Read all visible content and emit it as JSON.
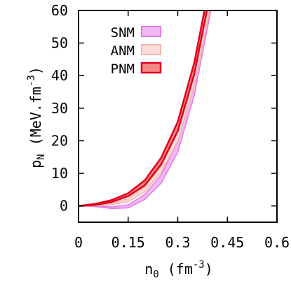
{
  "chart_data": {
    "type": "area",
    "xlabel": "n",
    "xlabel_sub": "0",
    "xlabel_unit": "(fm",
    "xlabel_exp": "-3",
    "xlabel_close": ")",
    "ylabel": "p",
    "ylabel_sub": "N",
    "ylabel_unit": "(MeV.fm",
    "ylabel_exp": "-3",
    "ylabel_close": ")",
    "xlim": [
      0,
      0.6
    ],
    "ylim": [
      -5,
      60
    ],
    "x_ticks": [
      0,
      0.15,
      0.3,
      0.45,
      0.6
    ],
    "x_tick_labels": [
      "0",
      "0.15",
      "0.3",
      "0.45",
      "0.6"
    ],
    "y_ticks": [
      0,
      10,
      20,
      30,
      40,
      50,
      60
    ],
    "y_tick_labels": [
      "0",
      "10",
      "20",
      "30",
      "40",
      "50",
      "60"
    ],
    "grid": false,
    "legend_position": "top-left",
    "x": [
      0.0,
      0.05,
      0.1,
      0.15,
      0.2,
      0.25,
      0.3,
      0.35,
      0.4
    ],
    "series": [
      {
        "name": "SNM",
        "color": "#e27ae8",
        "fill": "#f2b8f4",
        "lower": [
          0.0,
          -0.2,
          -0.8,
          -0.6,
          2.0,
          7.0,
          16.5,
          34.0,
          60.0
        ],
        "upper": [
          0.0,
          0.1,
          -0.3,
          0.3,
          3.5,
          9.5,
          20.0,
          39.0,
          66.0
        ]
      },
      {
        "name": "ANM",
        "color": "#f3b6ad",
        "fill": "#fbdcd7",
        "lower": [
          0.0,
          0.1,
          0.3,
          1.3,
          4.3,
          10.3,
          20.0,
          37.0,
          62.0
        ],
        "upper": [
          0.0,
          0.3,
          0.8,
          2.2,
          5.8,
          12.2,
          23.0,
          41.0,
          67.0
        ]
      },
      {
        "name": "PNM",
        "color": "#e0001c",
        "fill": "#f48a86",
        "lower": [
          0.0,
          0.3,
          1.2,
          3.0,
          6.3,
          12.8,
          23.0,
          40.5,
          66.0
        ],
        "upper": [
          0.0,
          0.6,
          1.8,
          3.9,
          7.8,
          14.8,
          25.8,
          44.0,
          70.0
        ]
      }
    ]
  }
}
